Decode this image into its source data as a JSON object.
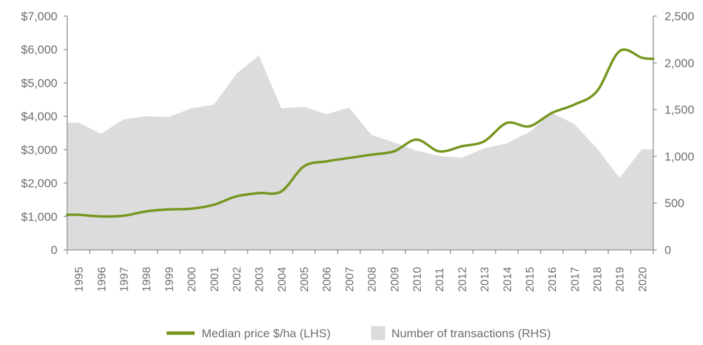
{
  "chart_data": {
    "type": "line",
    "x": [
      "1995",
      "1996",
      "1997",
      "1998",
      "1999",
      "2000",
      "2001",
      "2002",
      "2003",
      "2004",
      "2005",
      "2006",
      "2007",
      "2008",
      "2009",
      "2010",
      "2011",
      "2012",
      "2013",
      "2014",
      "2015",
      "2016",
      "2017",
      "2018",
      "2019",
      "2020"
    ],
    "series": [
      {
        "name": "Median price $/ha (LHS)",
        "type": "line",
        "axis": "left",
        "color": "#76961f",
        "values": [
          1050,
          1000,
          1020,
          1150,
          1210,
          1230,
          1350,
          1600,
          1700,
          1750,
          2500,
          2650,
          2750,
          2850,
          2950,
          3300,
          2950,
          3100,
          3250,
          3800,
          3700,
          4100,
          4350,
          4750,
          5950,
          5750
        ]
      },
      {
        "name": "Number of transactions (RHS)",
        "type": "area",
        "axis": "right",
        "color": "#dcdcdc",
        "values": [
          1360,
          1240,
          1395,
          1430,
          1420,
          1515,
          1550,
          1880,
          2080,
          1515,
          1530,
          1450,
          1520,
          1230,
          1150,
          1060,
          1005,
          985,
          1085,
          1140,
          1260,
          1465,
          1345,
          1085,
          770,
          1075
        ]
      }
    ],
    "y_left": {
      "ylim": [
        0,
        7000
      ],
      "ticks": [
        "0",
        "$1,000",
        "$2,000",
        "$3,000",
        "$4,000",
        "$5,000",
        "$6,000",
        "$7,000"
      ]
    },
    "y_right": {
      "ylim": [
        0,
        2500
      ],
      "ticks": [
        "0",
        "500",
        "1,000",
        "1,500",
        "2,000",
        "2,500"
      ]
    },
    "title": "",
    "xlabel": "",
    "ylabel": "",
    "grid": false,
    "legend_placement": "bottom-center"
  }
}
